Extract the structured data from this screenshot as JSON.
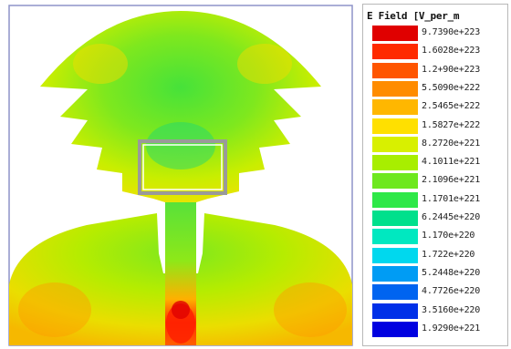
{
  "legend": {
    "title": "E Field [V_per_m",
    "entries": [
      {
        "label": "9.7390e+223",
        "color": "#e00000"
      },
      {
        "label": "1.6028e+223",
        "color": "#ff2a00"
      },
      {
        "label": "1.2+90e+223",
        "color": "#ff5500"
      },
      {
        "label": "5.5090e+222",
        "color": "#ff8c00"
      },
      {
        "label": "2.5465e+222",
        "color": "#ffb700"
      },
      {
        "label": "1.5827e+222",
        "color": "#ffe000"
      },
      {
        "label": "8.2720e+221",
        "color": "#d8f000"
      },
      {
        "label": "4.1011e+221",
        "color": "#a8ee00"
      },
      {
        "label": "2.1096e+221",
        "color": "#6ee81e"
      },
      {
        "label": "1.1701e+221",
        "color": "#2ee848"
      },
      {
        "label": "6.2445e+220",
        "color": "#00e08c"
      },
      {
        "label": "1.170e+220",
        "color": "#00e8c0"
      },
      {
        "label": "1.722e+220",
        "color": "#00d8ee"
      },
      {
        "label": "5.2448e+220",
        "color": "#009cf4"
      },
      {
        "label": "4.7726e+220",
        "color": "#0064f0"
      },
      {
        "label": "3.5160e+220",
        "color": "#0030e8"
      },
      {
        "label": "1.9290e+221",
        "color": "#0000e0"
      }
    ]
  },
  "plot": {
    "description_colors": {
      "frame": "#8d93c8",
      "background": "#ffffff",
      "slot_outline": "#9a9a9a"
    }
  }
}
